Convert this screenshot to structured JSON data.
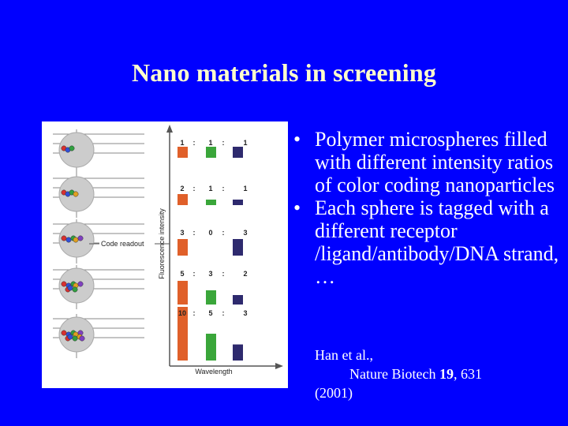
{
  "slide": {
    "title": "Nano materials in screening"
  },
  "figure": {
    "y_axis_label": "Fluorescence intensity",
    "x_axis_label": "Wavelength",
    "code_readout_label": "Code readout",
    "ratio_rows": [
      [
        "1",
        ":",
        "1",
        ":",
        "1"
      ],
      [
        "2",
        ":",
        "1",
        ":",
        "1"
      ],
      [
        "3",
        ":",
        "0",
        ":",
        "3"
      ],
      [
        "5",
        ":",
        "3",
        ":",
        "2"
      ],
      [
        "10",
        ":",
        "5",
        ":",
        "3"
      ]
    ],
    "colors": {
      "orange": "#e0602a",
      "green": "#3aa63a",
      "navy": "#2e2a6e",
      "sphere": "#cccccc",
      "line": "#888888"
    }
  },
  "bullets": [
    "Polymer microspheres filled with different intensity ratios of color coding nanoparticles",
    "Each sphere is tagged with a different receptor /ligand/antibody/DNA strand, …"
  ],
  "bullet_symbol": "•",
  "reference": {
    "authors": "Han et al.,",
    "journal": "Nature Biotech",
    "volume": "19",
    "pages": ", 631",
    "year": "(2001)"
  }
}
